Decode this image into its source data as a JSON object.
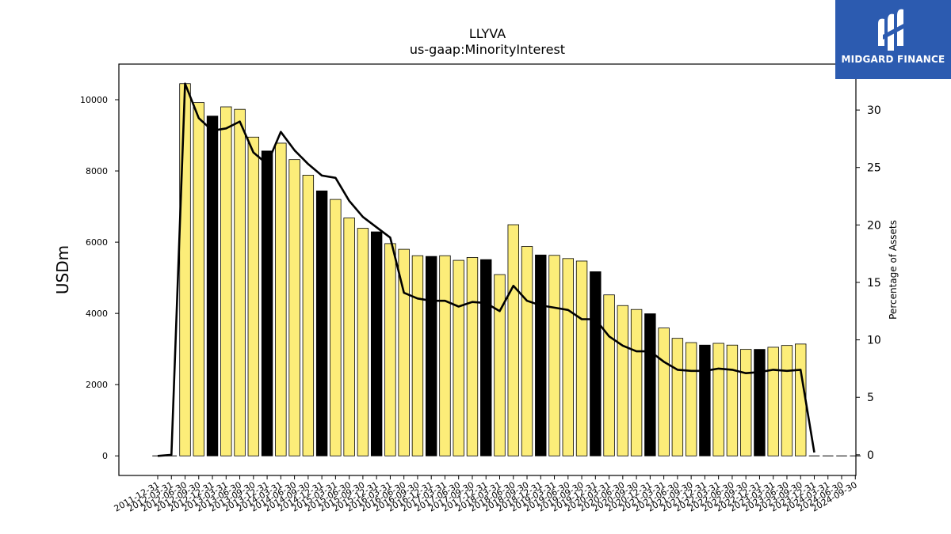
{
  "logo": {
    "text": "MIDGARD FINANCE"
  },
  "colors": {
    "bar_regular": "#fced79",
    "bar_annual": "#000000",
    "line": "#000000",
    "logo_bg": "#2c5bb0"
  },
  "chart_data": {
    "type": "bar",
    "title": "LLYVA",
    "subtitle": "us-gaap:MinorityInterest",
    "ylabel": "USDm",
    "y2label": "Percentage of Assets",
    "ylim": [
      -550,
      11000
    ],
    "y2lim": [
      -1.8,
      34
    ],
    "yticks": [
      0,
      2000,
      4000,
      6000,
      8000,
      10000
    ],
    "y2ticks": [
      0,
      5,
      10,
      15,
      20,
      25,
      30
    ],
    "grid": false,
    "categories": [
      "2011-12-31",
      "2012-03-31",
      "2012-06-30",
      "2012-09-30",
      "2012-12-31",
      "2013-03-31",
      "2013-06-30",
      "2013-09-30",
      "2013-12-31",
      "2014-03-31",
      "2014-06-30",
      "2014-09-30",
      "2014-12-31",
      "2015-03-31",
      "2015-06-30",
      "2015-09-30",
      "2015-12-31",
      "2016-03-31",
      "2016-06-30",
      "2016-09-30",
      "2016-12-31",
      "2017-03-31",
      "2017-06-30",
      "2017-09-30",
      "2017-12-31",
      "2018-03-31",
      "2018-06-30",
      "2018-09-30",
      "2018-12-31",
      "2019-03-31",
      "2019-06-30",
      "2019-09-30",
      "2019-12-31",
      "2020-03-31",
      "2020-06-30",
      "2020-09-30",
      "2020-12-31",
      "2021-03-31",
      "2021-06-30",
      "2021-09-30",
      "2021-12-31",
      "2022-03-31",
      "2022-06-30",
      "2022-09-30",
      "2022-12-31",
      "2023-03-31",
      "2023-06-30",
      "2023-09-30",
      "2023-12-31",
      "2024-03-31",
      "2024-06-30",
      "2024-09-30"
    ],
    "series": [
      {
        "type": "bar",
        "values": [
          0,
          0,
          10450,
          9920,
          9540,
          9800,
          9730,
          8950,
          8560,
          8780,
          8320,
          7880,
          7440,
          7200,
          6680,
          6390,
          6290,
          5960,
          5800,
          5620,
          5600,
          5620,
          5490,
          5570,
          5510,
          5090,
          6490,
          5880,
          5640,
          5630,
          5540,
          5470,
          5170,
          4520,
          4220,
          4110,
          3990,
          3590,
          3300,
          3180,
          3110,
          3160,
          3110,
          2990,
          2990,
          3050,
          3100,
          3140,
          0,
          0,
          0,
          0
        ],
        "annual": [
          true,
          false,
          false,
          false,
          true,
          false,
          false,
          false,
          true,
          false,
          false,
          false,
          true,
          false,
          false,
          false,
          true,
          false,
          false,
          false,
          true,
          false,
          false,
          false,
          true,
          false,
          false,
          false,
          true,
          false,
          false,
          false,
          true,
          false,
          false,
          false,
          true,
          false,
          false,
          false,
          true,
          false,
          false,
          false,
          true,
          false,
          false,
          false,
          true,
          false,
          false,
          false
        ]
      },
      {
        "type": "line",
        "axis": "right",
        "values": [
          -0.1,
          0,
          32.3,
          29.3,
          28.2,
          28.4,
          29.0,
          26.3,
          25.3,
          28.1,
          26.5,
          25.3,
          24.3,
          24.1,
          22.1,
          20.7,
          19.8,
          18.9,
          14.1,
          13.6,
          13.4,
          13.4,
          12.9,
          13.3,
          13.2,
          12.5,
          14.7,
          13.4,
          13.0,
          12.8,
          12.6,
          11.8,
          11.8,
          10.3,
          9.5,
          9.0,
          9.0,
          8.1,
          7.4,
          7.3,
          7.3,
          7.5,
          7.4,
          7.1,
          7.2,
          7.4,
          7.3,
          7.4,
          0.2,
          null,
          null,
          null
        ]
      }
    ]
  }
}
